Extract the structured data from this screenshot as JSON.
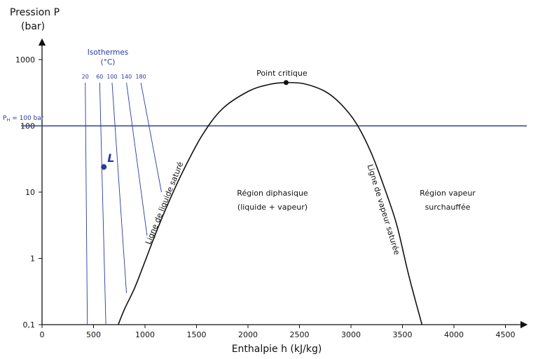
{
  "chart_data": {
    "type": "line",
    "ylabel_line1": "Pression P",
    "ylabel_line2": "(bar)",
    "xlabel": "Enthalpie h (kJ/kg)",
    "x_scale": "linear",
    "y_scale": "log",
    "xlim": [
      0,
      4800
    ],
    "ylim": [
      0.1,
      3000
    ],
    "x_ticks": [
      0,
      500,
      1000,
      1500,
      2000,
      2500,
      3000,
      3500,
      4000,
      4500
    ],
    "x_tick_labels": [
      "0",
      "500",
      "1000",
      "1500",
      "2000",
      "2500",
      "3000",
      "3500",
      "4000",
      "4500"
    ],
    "y_ticks": [
      0.1,
      1,
      10,
      100,
      1000
    ],
    "y_tick_labels": [
      "0,1",
      "1",
      "10",
      "100",
      "1000"
    ],
    "grid": false,
    "colors": {
      "axis": "#111111",
      "curve": "#111111",
      "blue": "#2a3a9e"
    },
    "saturation_curve": {
      "x": [
        740,
        800,
        900,
        1000,
        1100,
        1200,
        1350,
        1550,
        1750,
        2000,
        2200,
        2370,
        2550,
        2750,
        2900,
        3050,
        3200,
        3350,
        3450,
        3550,
        3620,
        3690
      ],
      "y": [
        0.1,
        0.17,
        0.36,
        0.9,
        2.3,
        5.5,
        18,
        70,
        180,
        330,
        420,
        450,
        430,
        330,
        215,
        110,
        38,
        9,
        3,
        0.65,
        0.25,
        0.1
      ]
    },
    "critical_point": {
      "x": 2370,
      "y": 450,
      "label": "Point critique"
    },
    "isobar": {
      "y": 100,
      "label_main": "P",
      "label_sub": "H",
      "label_rest": " = 100 bar"
    },
    "point_L": {
      "x": 600,
      "y": 24,
      "label": "L"
    },
    "isotherms": {
      "title_line1": "Isothermes",
      "title_line2": "(°C)",
      "series": [
        {
          "name": "20",
          "x": [
            420,
            440
          ],
          "y": [
            2000,
            0.1
          ]
        },
        {
          "name": "60",
          "x": [
            560,
            620
          ],
          "y": [
            2000,
            0.1
          ]
        },
        {
          "name": "100",
          "x": [
            680,
            820
          ],
          "y": [
            2000,
            0.3
          ]
        },
        {
          "name": "140",
          "x": [
            820,
            1020
          ],
          "y": [
            2000,
            2.2
          ]
        },
        {
          "name": "180",
          "x": [
            960,
            1160
          ],
          "y": [
            2000,
            10
          ]
        }
      ]
    },
    "annotations": {
      "region_two_phase_line1": "Région diphasique",
      "region_two_phase_line2": "(liquide + vapeur)",
      "region_vapor_line1": "Région vapeur",
      "region_vapor_line2": "surchauffée",
      "liquid_line": "Ligne de liquide saturé",
      "vapor_line": "Ligne de vapeur saturée"
    }
  }
}
